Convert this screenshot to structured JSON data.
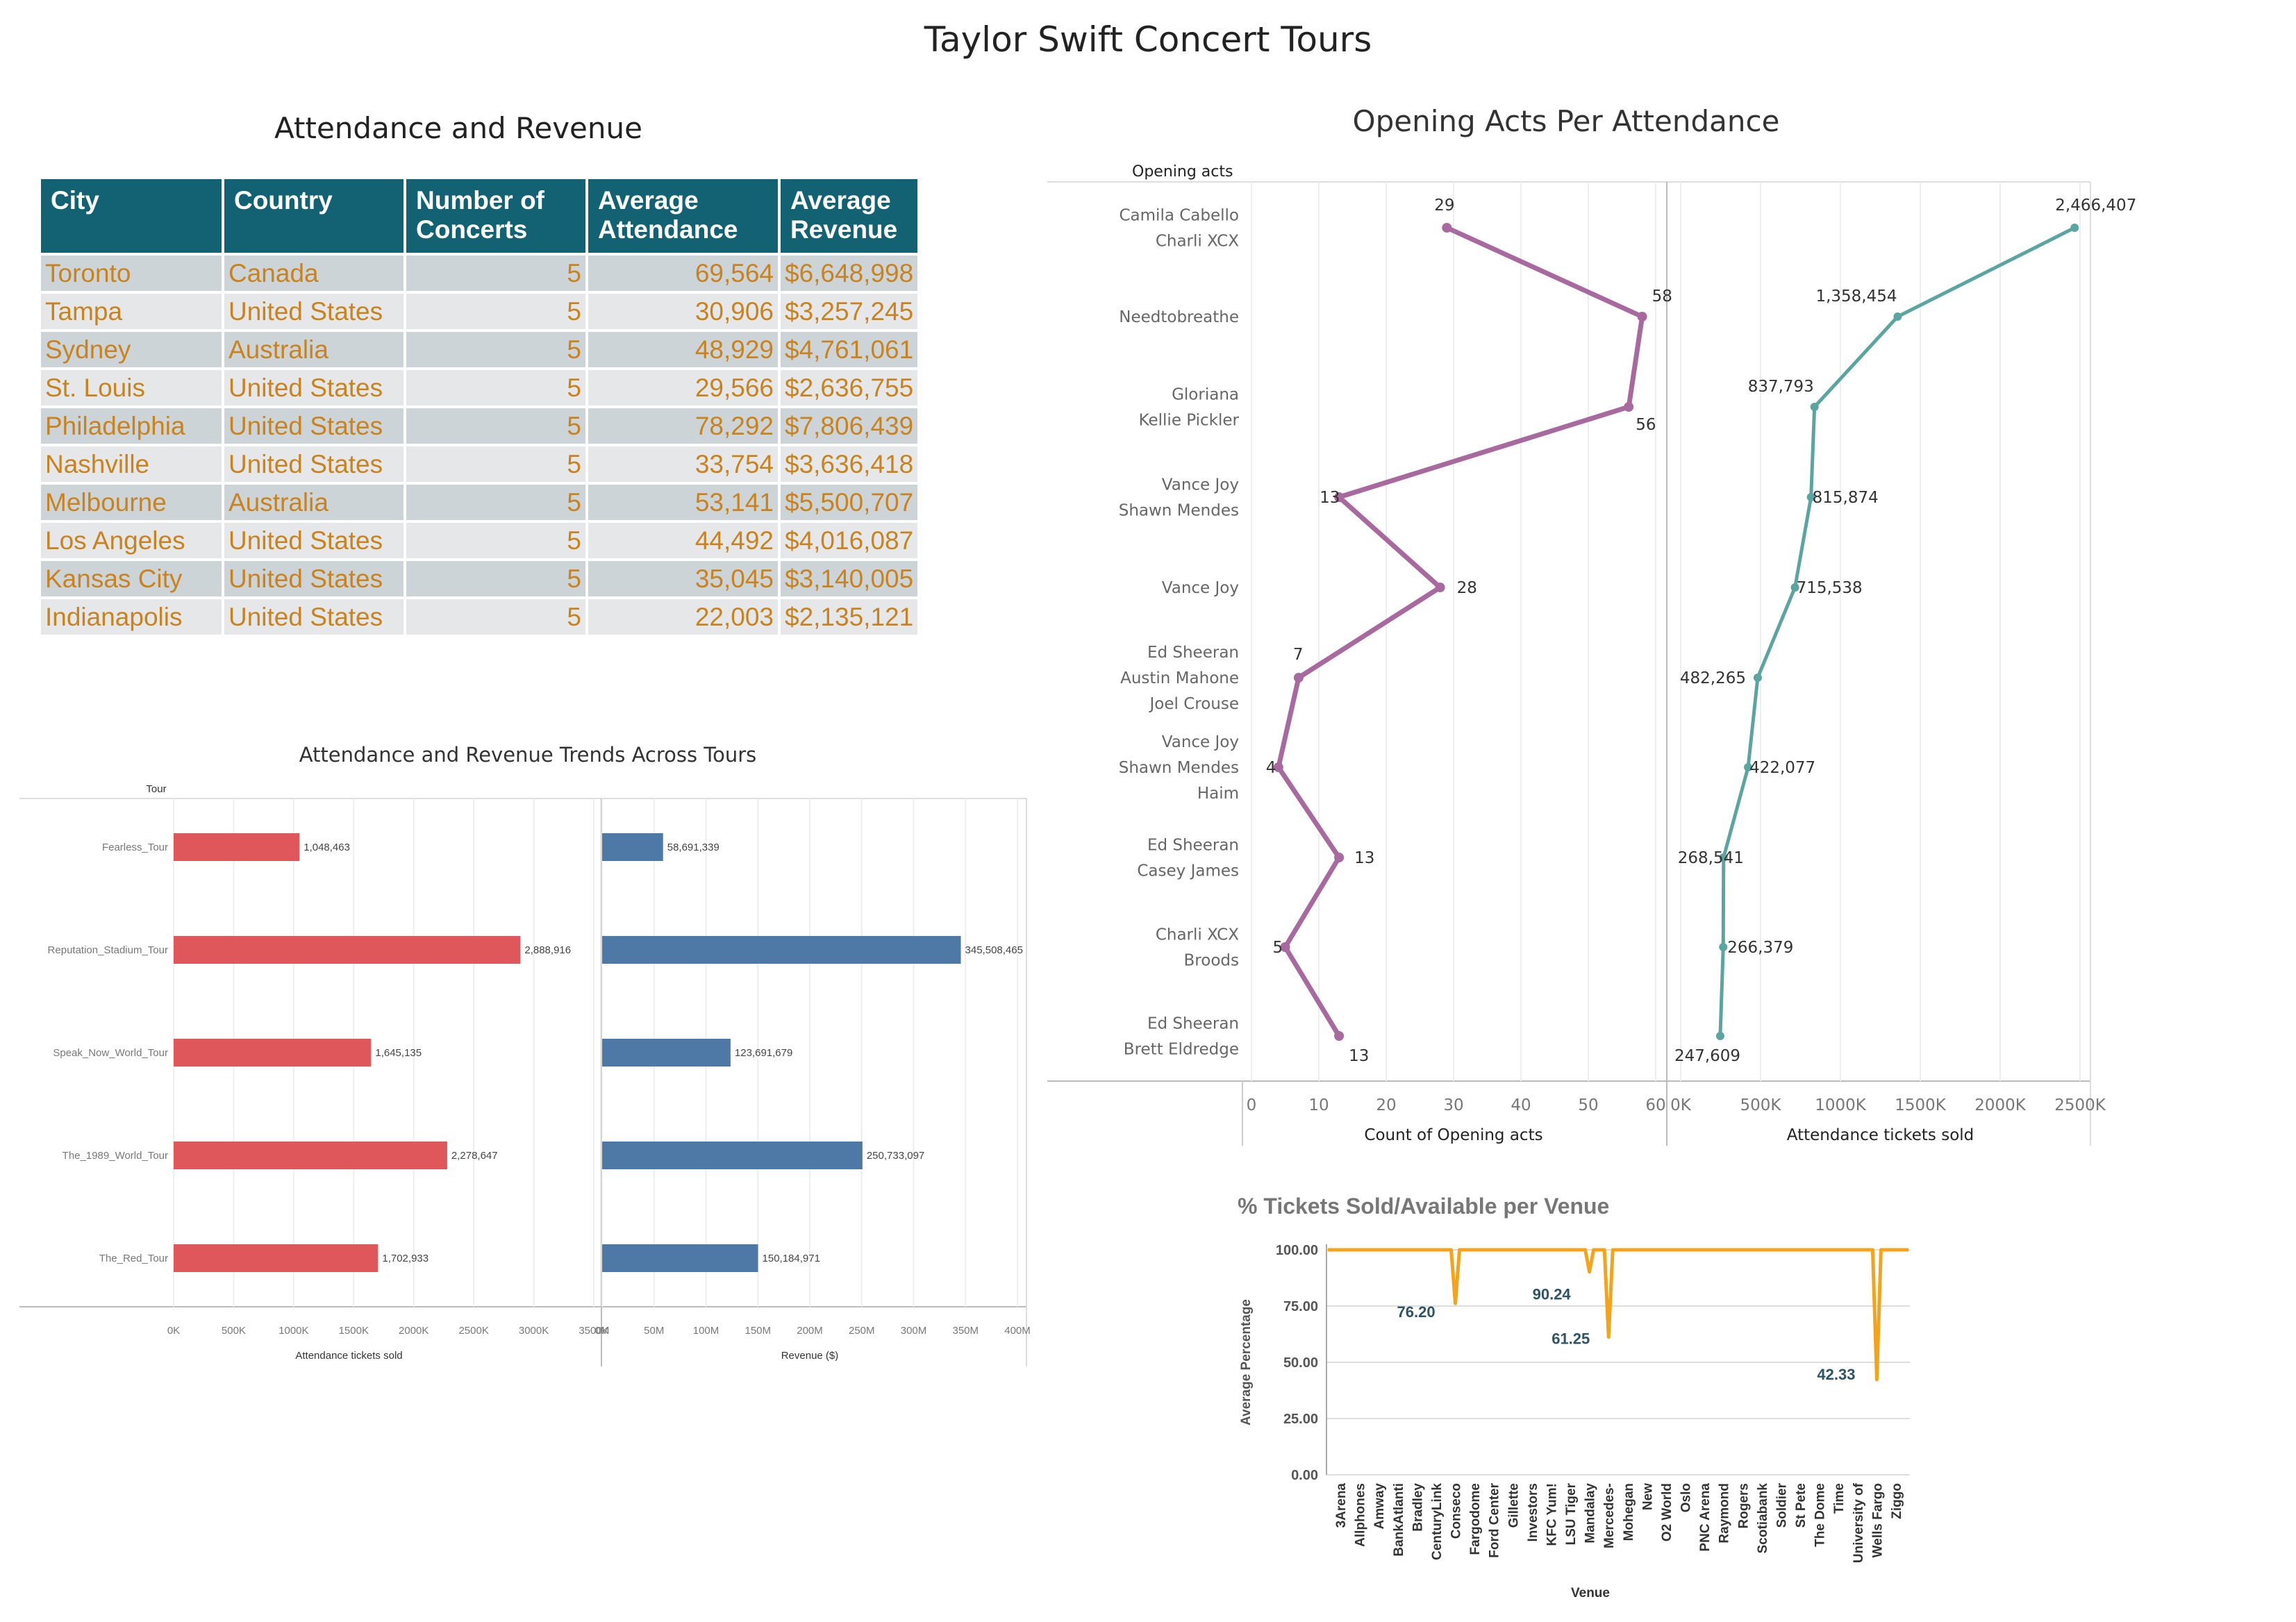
{
  "title": "Taylor Swift Concert Tours",
  "table": {
    "title": "Attendance and Revenue",
    "columns": [
      "City",
      "Country",
      "Number of Concerts",
      "Average Attendance",
      "Average Revenue"
    ],
    "rows": [
      [
        "Toronto",
        "Canada",
        "5",
        "69,564",
        "$6,648,998"
      ],
      [
        "Tampa",
        "United States",
        "5",
        "30,906",
        "$3,257,245"
      ],
      [
        "Sydney",
        "Australia",
        "5",
        "48,929",
        "$4,761,061"
      ],
      [
        "St. Louis",
        "United States",
        "5",
        "29,566",
        "$2,636,755"
      ],
      [
        "Philadelphia",
        "United States",
        "5",
        "78,292",
        "$7,806,439"
      ],
      [
        "Nashville",
        "United States",
        "5",
        "33,754",
        "$3,636,418"
      ],
      [
        "Melbourne",
        "Australia",
        "5",
        "53,141",
        "$5,500,707"
      ],
      [
        "Los Angeles",
        "United States",
        "5",
        "44,492",
        "$4,016,087"
      ],
      [
        "Kansas City",
        "United States",
        "5",
        "35,045",
        "$3,140,005"
      ],
      [
        "Indianapolis",
        "United States",
        "5",
        "22,003",
        "$2,135,121"
      ]
    ]
  },
  "chart_data": [
    {
      "type": "bar",
      "orientation": "horizontal",
      "title": "Attendance and Revenue Trends Across Tours",
      "category_label": "Tour",
      "categories": [
        "Fearless_Tour",
        "Reputation_Stadium_Tour",
        "Speak_Now_World_Tour",
        "The_1989_World_Tour",
        "The_Red_Tour"
      ],
      "panels": [
        {
          "xlabel": "Attendance tickets sold",
          "ticks": [
            "0K",
            "500K",
            "1000K",
            "1500K",
            "2000K",
            "2500K",
            "3000K",
            "3500K"
          ],
          "xlim": [
            0,
            3500000
          ],
          "color": "#e0575b",
          "values": [
            1048463,
            2888916,
            1645135,
            2278647,
            1702933
          ],
          "labels": [
            "1,048,463",
            "2,888,916",
            "1,645,135",
            "2,278,647",
            "1,702,933"
          ]
        },
        {
          "xlabel": "Revenue ($)",
          "ticks": [
            "0M",
            "50M",
            "100M",
            "150M",
            "200M",
            "250M",
            "300M",
            "350M",
            "400M"
          ],
          "xlim": [
            0,
            400000000
          ],
          "color": "#4e79a7",
          "values": [
            58691339,
            345508465,
            123691679,
            250733097,
            150184971
          ],
          "labels": [
            "58,691,339",
            "345,508,465",
            "123,691,679",
            "250,733,097",
            "150,184,971"
          ]
        }
      ]
    },
    {
      "type": "line",
      "title": "Opening Acts Per Attendance",
      "row_header": "Opening acts",
      "rows": [
        [
          "Camila Cabello",
          "Charli XCX"
        ],
        [
          "Needtobreathe"
        ],
        [
          "Gloriana",
          "Kellie Pickler"
        ],
        [
          "Vance Joy",
          "Shawn Mendes"
        ],
        [
          "Vance Joy"
        ],
        [
          "Ed Sheeran",
          "Austin Mahone",
          "Joel Crouse"
        ],
        [
          "Vance Joy",
          "Shawn Mendes",
          "Haim"
        ],
        [
          "Ed Sheeran",
          "Casey James"
        ],
        [
          "Charli XCX",
          "Broods"
        ],
        [
          "Ed Sheeran",
          "Brett Eldredge"
        ]
      ],
      "panels": [
        {
          "xlabel": "Count of Opening acts",
          "ticks": [
            "0",
            "10",
            "20",
            "30",
            "40",
            "50",
            "60"
          ],
          "xlim": [
            0,
            60
          ],
          "color": "#a86a9e",
          "values": [
            29,
            58,
            56,
            13,
            28,
            7,
            4,
            13,
            5,
            13
          ],
          "labels": [
            "29",
            "58",
            "56",
            "13",
            "28",
            "7",
            "4",
            "13",
            "5",
            "13"
          ]
        },
        {
          "xlabel": "Attendance tickets sold",
          "ticks": [
            "0K",
            "500K",
            "1000K",
            "1500K",
            "2000K",
            "2500K"
          ],
          "xlim": [
            0,
            2500000
          ],
          "color": "#5aa5a0",
          "values": [
            2466407,
            1358454,
            837793,
            815874,
            715538,
            482265,
            422077,
            268541,
            266379,
            247609
          ],
          "labels": [
            "2,466,407",
            "1,358,454",
            "837,793",
            "815,874",
            "715,538",
            "482,265",
            "422,077",
            "268,541",
            "266,379",
            "247,609"
          ]
        }
      ]
    },
    {
      "type": "line",
      "title": "% Tickets Sold/Available per Venue",
      "ylabel": "Average Percentage",
      "xlabel": "Venue",
      "yticks": [
        "100.00",
        "75.00",
        "50.00",
        "25.00",
        "0.00"
      ],
      "ylim": [
        0,
        100
      ],
      "color": "#f5a31a",
      "venues": [
        "3Arena",
        "Allphones",
        "Amway",
        "BankAtlanti",
        "Bradley",
        "CenturyLink",
        "Conseco",
        "Fargodome",
        "Ford Center",
        "Gillette",
        "Investors",
        "KFC Yum!",
        "LSU Tiger",
        "Mandalay",
        "Mercedes-",
        "Mohegan",
        "New",
        "O2 World",
        "Oslo",
        "PNC Arena",
        "Raymond",
        "Rogers",
        "Scotiabank",
        "Soldier",
        "St Pete",
        "The Dome",
        "Time",
        "University of",
        "Wells Fargo",
        "Ziggo"
      ],
      "annotations": [
        {
          "venue": "Conseco",
          "value": 76.2,
          "label": "76.20"
        },
        {
          "venue": "Mandalay",
          "value": 90.24,
          "label": "90.24"
        },
        {
          "venue": "Mercedes-",
          "value": 61.25,
          "label": "61.25"
        },
        {
          "venue": "Wells Fargo",
          "value": 42.33,
          "label": "42.33"
        }
      ]
    }
  ]
}
